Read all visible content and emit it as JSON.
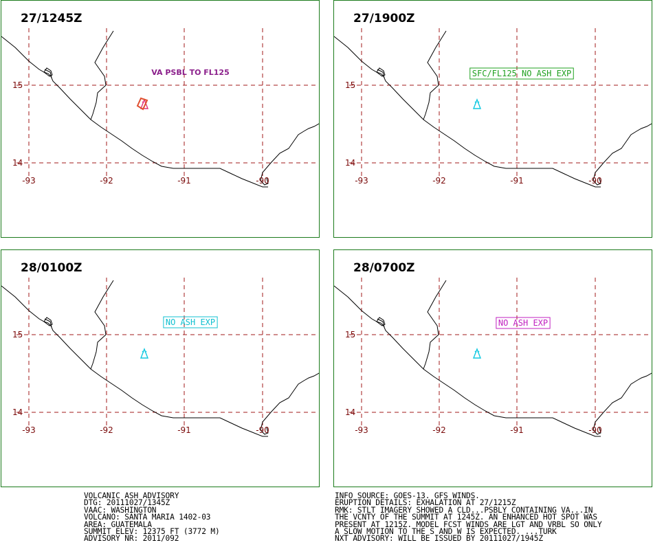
{
  "panels": [
    {
      "time": "27/1245Z",
      "annotation": "VA PSBL TO FL125",
      "annotation_color": "#8b1f8b",
      "annotation_boxed": false,
      "has_ash_polygon": true,
      "volcano_color": "#e0307a"
    },
    {
      "time": "27/1900Z",
      "annotation": "SFC/FL125 NO ASH EXP",
      "annotation_color": "#1fa01f",
      "annotation_boxed": true,
      "has_ash_polygon": false,
      "volcano_color": "#10c8e0"
    },
    {
      "time": "28/0100Z",
      "annotation": "NO ASH EXP",
      "annotation_color": "#10c0d0",
      "annotation_boxed": true,
      "has_ash_polygon": false,
      "volcano_color": "#10c8e0"
    },
    {
      "time": "28/0700Z",
      "annotation": "NO ASH EXP",
      "annotation_color": "#c020c0",
      "annotation_boxed": true,
      "has_ash_polygon": false,
      "volcano_color": "#10c8e0"
    }
  ],
  "lat_labels": [
    "15",
    "14"
  ],
  "lon_labels": [
    "-93",
    "-92",
    "-91",
    "-90"
  ],
  "colors": {
    "frame": "#1a7a1a",
    "grid": "#a01a1a",
    "ash_outline": "#e05030"
  },
  "advisory_left": [
    "VOLCANIC ASH ADVISORY",
    "DTG: 20111027/1345Z",
    "VAAC: WASHINGTON",
    "VOLCANO: SANTA MARIA 1402-03",
    "AREA: GUATEMALA",
    "SUMMIT ELEV: 12375 FT (3772 M)",
    "ADVISORY NR: 2011/092"
  ],
  "advisory_right": [
    "INFO SOURCE: GOES-13. GFS WINDS.",
    "ERUPTION DETAILS: EXHALATION AT 27/1215Z",
    "RMK: STLT IMAGERY SHOWED A CLD...PSBLY CONTAINING VA...IN",
    "THE VCNTY OF THE SUMMIT AT 1245Z. AN ENHANCED HOT SPOT WAS",
    "PRESENT AT 1215Z. MODEL FCST WINDS ARE LGT AND VRBL SO ONLY",
    "A SLOW MOTION TO THE S AND W IS EXPECTED. ...TURK",
    "NXT ADVISORY: WILL BE ISSUED BY 20111027/1945Z"
  ]
}
